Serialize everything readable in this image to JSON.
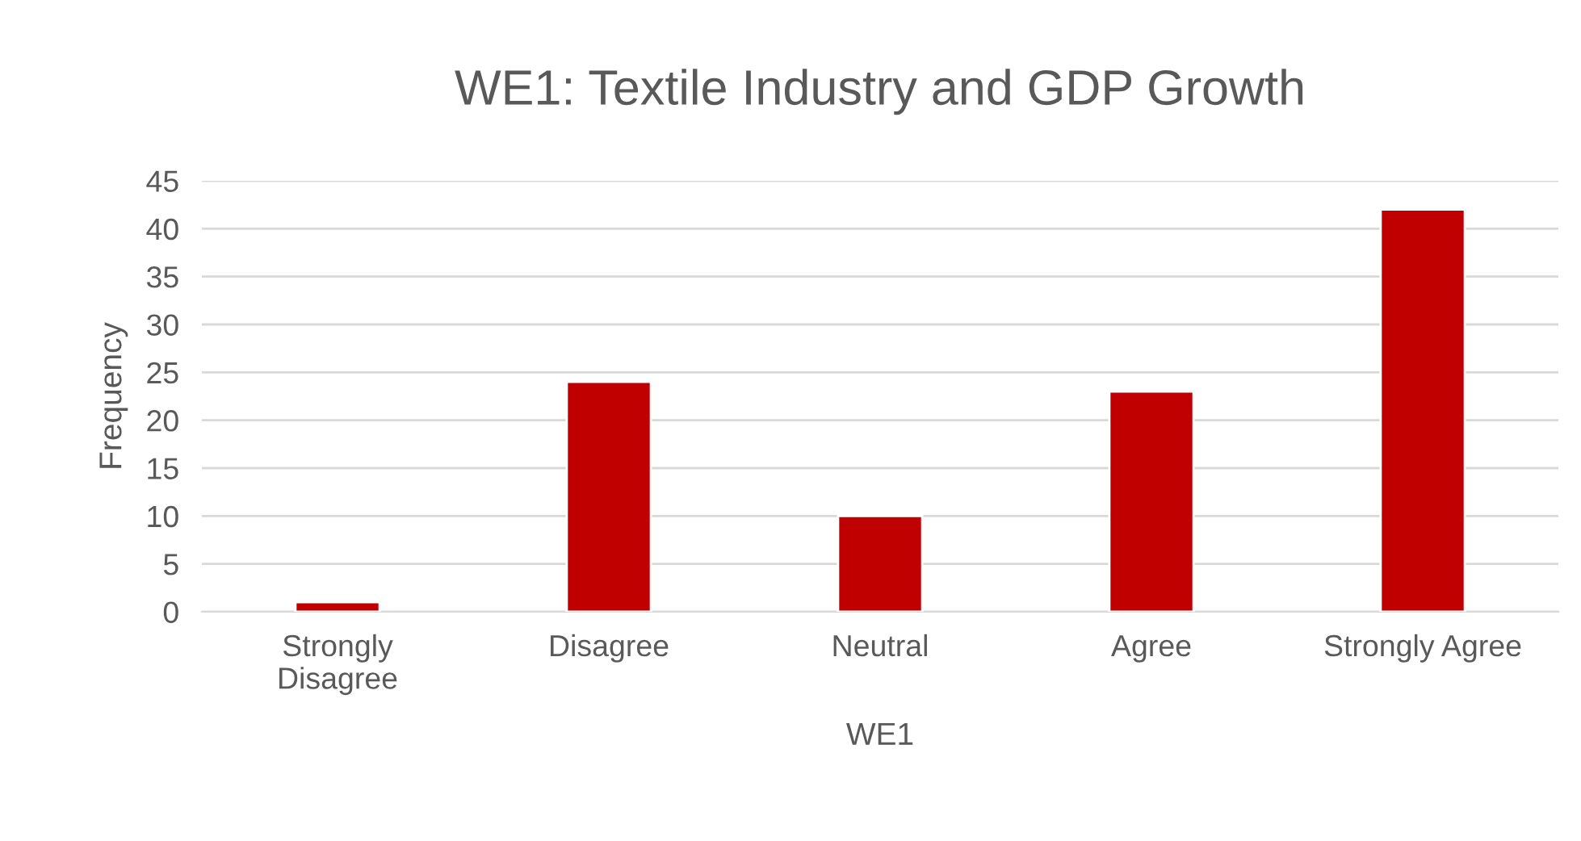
{
  "chart_data": {
    "type": "bar",
    "title": "WE1: Textile Industry and GDP Growth",
    "xlabel": "WE1",
    "ylabel": "Frequency",
    "categories": [
      "Strongly\nDisagree",
      "Disagree",
      "Neutral",
      "Agree",
      "Strongly Agree"
    ],
    "values": [
      1,
      24,
      10,
      23,
      42
    ],
    "color": "#c00000",
    "ylim": [
      0,
      45
    ],
    "yticks": [
      0,
      5,
      10,
      15,
      20,
      25,
      30,
      35,
      40,
      45
    ],
    "grid": "y",
    "legend": false
  }
}
